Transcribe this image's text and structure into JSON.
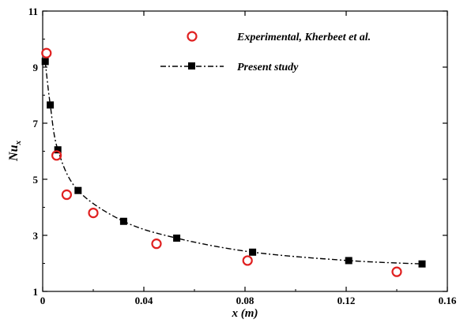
{
  "chart_data": {
    "type": "scatter",
    "xlabel": "x (m)",
    "ylabel_main": "Nu",
    "ylabel_sub": "x",
    "xlim": [
      0,
      0.16
    ],
    "ylim": [
      1,
      11
    ],
    "xticks": [
      0,
      0.04,
      0.08,
      0.12,
      0.16
    ],
    "xtick_labels": [
      "0",
      "0.04",
      "0.08",
      "0.12",
      "0.16"
    ],
    "yticks": [
      1,
      3,
      5,
      7,
      9,
      11
    ],
    "ytick_labels": [
      "1",
      "3",
      "5",
      "7",
      "9",
      "11"
    ],
    "grid": false,
    "legend_position": "top-right",
    "series": [
      {
        "name": "Experimental, Kherbeet et al.",
        "marker": "open-circle",
        "color": "#e02020",
        "x": [
          0.0015,
          0.0055,
          0.0095,
          0.02,
          0.045,
          0.081,
          0.14
        ],
        "y": [
          9.5,
          5.85,
          4.45,
          3.8,
          2.7,
          2.1,
          1.7
        ]
      },
      {
        "name": "Present study",
        "marker": "filled-square",
        "line": "dash-dot",
        "color": "#000000",
        "x": [
          0.001,
          0.003,
          0.006,
          0.014,
          0.032,
          0.053,
          0.083,
          0.121,
          0.15
        ],
        "y": [
          9.2,
          7.65,
          6.05,
          4.6,
          3.5,
          2.9,
          2.4,
          2.1,
          1.98
        ]
      }
    ]
  }
}
